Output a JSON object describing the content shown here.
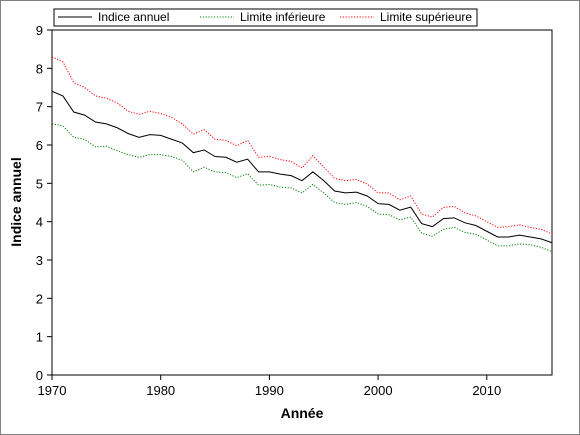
{
  "chart_data": {
    "type": "line",
    "xlabel": "Année",
    "ylabel": "Indice annuel",
    "xlim": [
      1970,
      2016
    ],
    "ylim": [
      0,
      9
    ],
    "xticks": [
      "1970",
      "1980",
      "1990",
      "2000",
      "2010"
    ],
    "yticks": [
      "0",
      "1",
      "2",
      "3",
      "4",
      "5",
      "6",
      "7",
      "8",
      "9"
    ],
    "grid": false,
    "legend_position": "top-left",
    "x": [
      1970,
      1971,
      1972,
      1973,
      1974,
      1975,
      1976,
      1977,
      1978,
      1979,
      1980,
      1981,
      1982,
      1983,
      1984,
      1985,
      1986,
      1987,
      1988,
      1989,
      1990,
      1991,
      1992,
      1993,
      1994,
      1995,
      1996,
      1997,
      1998,
      1999,
      2000,
      2001,
      2002,
      2003,
      2004,
      2005,
      2006,
      2007,
      2008,
      2009,
      2010,
      2011,
      2012,
      2013,
      2014,
      2015,
      2016
    ],
    "series": [
      {
        "name": "Indice annuel",
        "color": "#000000",
        "dash": "solid",
        "values": [
          7.4,
          7.28,
          6.86,
          6.78,
          6.6,
          6.55,
          6.45,
          6.3,
          6.2,
          6.27,
          6.25,
          6.15,
          6.05,
          5.8,
          5.87,
          5.7,
          5.68,
          5.55,
          5.63,
          5.3,
          5.3,
          5.24,
          5.2,
          5.07,
          5.3,
          5.07,
          4.8,
          4.75,
          4.77,
          4.67,
          4.47,
          4.45,
          4.3,
          4.38,
          3.95,
          3.87,
          4.08,
          4.1,
          3.97,
          3.9,
          3.75,
          3.6,
          3.6,
          3.65,
          3.6,
          3.55,
          3.45
        ]
      },
      {
        "name": "Limite inférieure",
        "color": "#008000",
        "dash": "dotted",
        "values": [
          6.55,
          6.5,
          6.2,
          6.15,
          5.95,
          5.97,
          5.85,
          5.75,
          5.68,
          5.75,
          5.75,
          5.7,
          5.6,
          5.3,
          5.42,
          5.3,
          5.28,
          5.15,
          5.25,
          4.95,
          4.97,
          4.9,
          4.88,
          4.75,
          4.97,
          4.75,
          4.5,
          4.45,
          4.5,
          4.4,
          4.2,
          4.18,
          4.05,
          4.12,
          3.7,
          3.62,
          3.8,
          3.85,
          3.72,
          3.67,
          3.52,
          3.37,
          3.37,
          3.42,
          3.4,
          3.33,
          3.22
        ]
      },
      {
        "name": "Limite supérieure",
        "color": "#ff0000",
        "dash": "dotted",
        "values": [
          8.3,
          8.17,
          7.63,
          7.5,
          7.28,
          7.22,
          7.1,
          6.88,
          6.8,
          6.88,
          6.82,
          6.72,
          6.55,
          6.28,
          6.4,
          6.15,
          6.12,
          5.98,
          6.12,
          5.68,
          5.7,
          5.62,
          5.57,
          5.4,
          5.72,
          5.42,
          5.13,
          5.07,
          5.1,
          4.98,
          4.75,
          4.75,
          4.57,
          4.67,
          4.2,
          4.12,
          4.37,
          4.4,
          4.23,
          4.15,
          4.0,
          3.85,
          3.87,
          3.92,
          3.85,
          3.8,
          3.68
        ]
      }
    ]
  }
}
